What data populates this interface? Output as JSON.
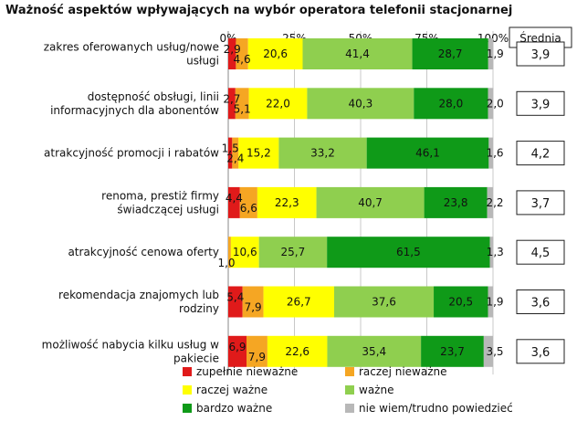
{
  "chart_data": {
    "type": "bar",
    "orientation": "horizontal",
    "stacked": true,
    "percent": true,
    "title": "Ważność aspektów wpływających na wybór operatora telefonii stacjonarnej",
    "xlim": [
      0,
      100
    ],
    "xticks": [
      "0%",
      "25%",
      "50%",
      "75%",
      "100%"
    ],
    "grid": true,
    "legend_position": "bottom",
    "categories": [
      [
        "zakres oferowanych usług/nowe",
        "usługi"
      ],
      [
        "dostępność obsługi, linii",
        "informacyjnych dla abonentów"
      ],
      [
        "atrakcyjność promocji i rabatów"
      ],
      [
        "renoma, prestiż firmy",
        "świadczącej usługi"
      ],
      [
        "atrakcyjność cenowa oferty"
      ],
      [
        "rekomendacja znajomych lub",
        "rodziny"
      ],
      [
        "możliwość nabycia kilku usług w",
        "pakiecie"
      ]
    ],
    "series": [
      {
        "name": "zupełnie nieważne",
        "color": "#e01a1a",
        "values": [
          2.9,
          2.7,
          1.5,
          4.4,
          0.0,
          5.4,
          6.9
        ]
      },
      {
        "name": "raczej nieważne",
        "color": "#f5a623",
        "values": [
          4.6,
          5.1,
          2.4,
          6.6,
          1.0,
          7.9,
          7.9
        ]
      },
      {
        "name": "raczej ważne",
        "color": "#ffff00",
        "values": [
          20.6,
          22.0,
          15.2,
          22.3,
          10.6,
          26.7,
          22.6
        ]
      },
      {
        "name": "ważne",
        "color": "#8fcf4f",
        "values": [
          41.4,
          40.3,
          33.2,
          40.7,
          25.7,
          37.6,
          35.4
        ]
      },
      {
        "name": "bardzo ważne",
        "color": "#0f9a18",
        "values": [
          28.7,
          28.0,
          46.1,
          23.8,
          61.5,
          20.5,
          23.7
        ]
      },
      {
        "name": "nie wiem/trudno powiedzieć",
        "color": "#b8b8b8",
        "values": [
          1.9,
          2.0,
          1.6,
          2.2,
          1.3,
          1.9,
          3.5
        ]
      }
    ],
    "labels": [
      [
        "2,9",
        "4,6",
        "20,6",
        "41,4",
        "28,7",
        "1,9"
      ],
      [
        "2,7",
        "5,1",
        "22,0",
        "40,3",
        "28,0",
        "2,0"
      ],
      [
        "1,5",
        "2,4",
        "15,2",
        "33,2",
        "46,1",
        "1,6"
      ],
      [
        "4,4",
        "6,6",
        "22,3",
        "40,7",
        "23,8",
        "2,2"
      ],
      [
        "",
        "1,0",
        "10,6",
        "25,7",
        "61,5",
        "1,3"
      ],
      [
        "5,4",
        "7,9",
        "26,7",
        "37,6",
        "20,5",
        "1,9"
      ],
      [
        "6,9",
        "7,9",
        "22,6",
        "35,4",
        "23,7",
        "3,5"
      ]
    ],
    "mean_header": "Średnia",
    "means": [
      "3,9",
      "3,9",
      "4,2",
      "3,7",
      "4,5",
      "3,6",
      "3,6"
    ]
  }
}
